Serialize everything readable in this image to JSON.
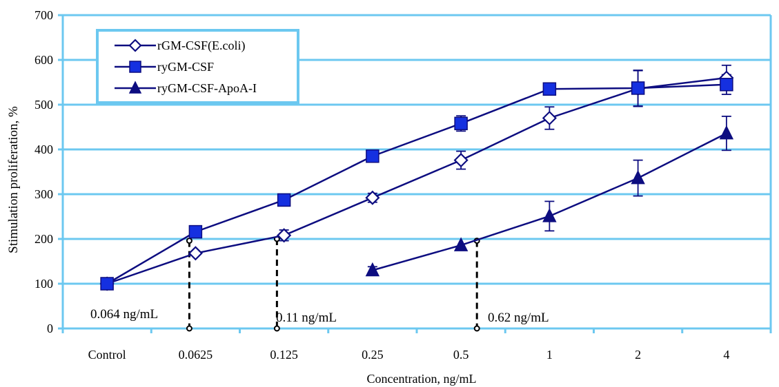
{
  "chart_data": {
    "type": "line",
    "xlabel": "Concentration, ng/mL",
    "ylabel": "Stimulation proliferation, %",
    "categories": [
      "Control",
      "0.0625",
      "0.125",
      "0.25",
      "0.5",
      "1",
      "2",
      "4"
    ],
    "ylim": [
      0,
      700
    ],
    "yticks": [
      0,
      100,
      200,
      300,
      400,
      500,
      600,
      700
    ],
    "grid": true,
    "legend_position": "top-left",
    "colors": {
      "grid": "#6cc8f0",
      "frame": "#6cc8f0",
      "series_line": "#0d0d80",
      "square_fill": "#1530e0",
      "triangle_fill": "#0d0d80"
    },
    "series": [
      {
        "name": "rGM-CSF(E.coli)",
        "marker": "diamond-open",
        "values": [
          100,
          168,
          208,
          292,
          376,
          470,
          536,
          560
        ],
        "errors": [
          0,
          0,
          12,
          10,
          20,
          25,
          40,
          28
        ]
      },
      {
        "name": "ryGM-CSF",
        "marker": "square",
        "values": [
          100,
          216,
          287,
          385,
          458,
          535,
          537,
          545
        ],
        "errors": [
          0,
          0,
          0,
          13,
          17,
          12,
          40,
          22
        ]
      },
      {
        "name": "ryGM-CSF-ApoA-I",
        "marker": "triangle",
        "values": [
          null,
          null,
          null,
          130,
          186,
          251,
          336,
          436
        ],
        "errors": [
          0,
          0,
          0,
          8,
          0,
          33,
          40,
          38
        ]
      }
    ],
    "annotations": [
      {
        "label": "0.064 ng/mL",
        "x_index": 0.93,
        "y": 196
      },
      {
        "label": "0.11 ng/mL",
        "x_index": 1.92,
        "y": 200
      },
      {
        "label": "0.62 ng/mL",
        "x_index": 4.18,
        "y": 196
      }
    ]
  }
}
